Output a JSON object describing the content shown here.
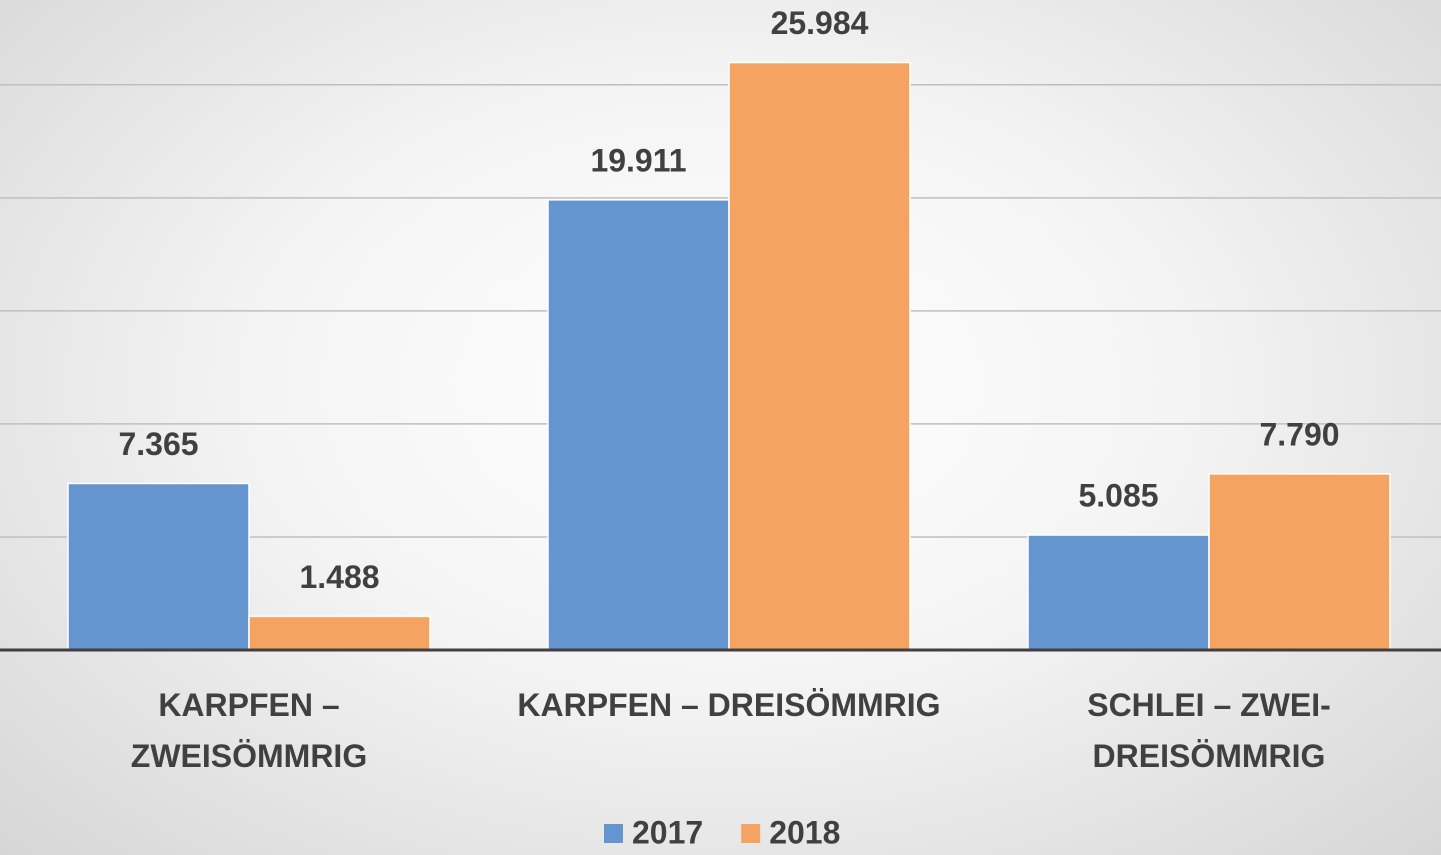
{
  "chart_data": {
    "type": "bar",
    "categories": [
      "KARPFEN – ZWEISÖMMRIG",
      "KARPFEN – DREISÖMMRIG",
      "SCHLEI – ZWEI-DREISÖMMRIG"
    ],
    "series": [
      {
        "name": "2017",
        "color": "#6495cf",
        "values": [
          7365,
          19911,
          5085
        ],
        "value_labels": [
          "7.365",
          "19.911",
          "5.085"
        ]
      },
      {
        "name": "2018",
        "color": "#f4a460",
        "values": [
          1488,
          25984,
          7790
        ],
        "value_labels": [
          "1.488",
          "25.984",
          "7.790"
        ]
      }
    ],
    "ylim": [
      0,
      28750
    ],
    "yticks": [
      0,
      5000,
      10000,
      15000,
      20000,
      25000
    ],
    "grid": true,
    "legend": "bottom"
  }
}
